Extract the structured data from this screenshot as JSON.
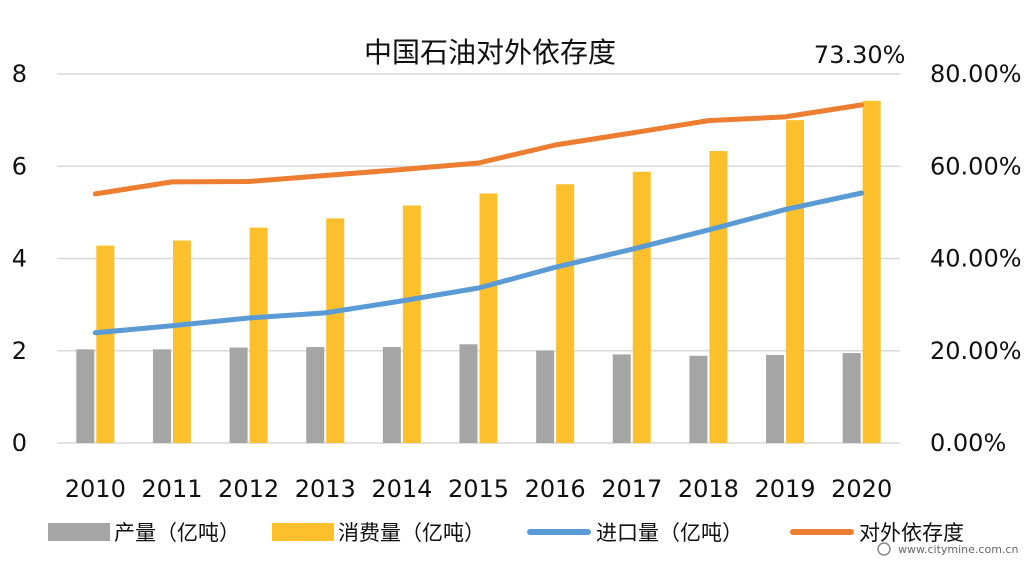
{
  "chart_data": {
    "type": "bar",
    "title": "中国石油对外依存度",
    "categories": [
      "2010",
      "2011",
      "2012",
      "2013",
      "2014",
      "2015",
      "2016",
      "2017",
      "2018",
      "2019",
      "2020"
    ],
    "y_left": {
      "ylim": [
        0,
        8
      ],
      "ticks": [
        "0",
        "2",
        "4",
        "6",
        "8"
      ]
    },
    "y_right": {
      "ylim": [
        0,
        0.8
      ],
      "ticks": [
        "0.00%",
        "20.00%",
        "40.00%",
        "60.00%",
        "80.00%"
      ]
    },
    "grid": true,
    "legend_position": "bottom",
    "series": [
      {
        "name": "产量（亿吨）",
        "type": "bar",
        "axis": "left",
        "color": "#a5a5a5",
        "values": [
          2.03,
          2.03,
          2.07,
          2.08,
          2.08,
          2.14,
          2.0,
          1.92,
          1.89,
          1.91,
          1.95
        ]
      },
      {
        "name": "消费量（亿吨）",
        "type": "bar",
        "axis": "left",
        "color": "#fdc02d",
        "values": [
          4.28,
          4.39,
          4.67,
          4.87,
          5.15,
          5.41,
          5.61,
          5.88,
          6.33,
          7.0,
          7.42
        ]
      },
      {
        "name": "进口量（亿吨）",
        "type": "line",
        "axis": "left",
        "color": "#5b9bd5",
        "values": [
          2.39,
          2.54,
          2.71,
          2.82,
          3.08,
          3.36,
          3.81,
          4.2,
          4.62,
          5.06,
          5.42
        ]
      },
      {
        "name": "对外依存度",
        "type": "line",
        "axis": "right",
        "color": "#ed7d31",
        "values": [
          0.54,
          0.566,
          0.567,
          0.58,
          0.593,
          0.607,
          0.646,
          0.672,
          0.699,
          0.707,
          0.733
        ]
      }
    ],
    "annotations": [
      {
        "text": "73.30%",
        "series": "对外依存度",
        "category": "2020"
      }
    ]
  },
  "watermark": {
    "text": "www.citymine.com.cn"
  }
}
